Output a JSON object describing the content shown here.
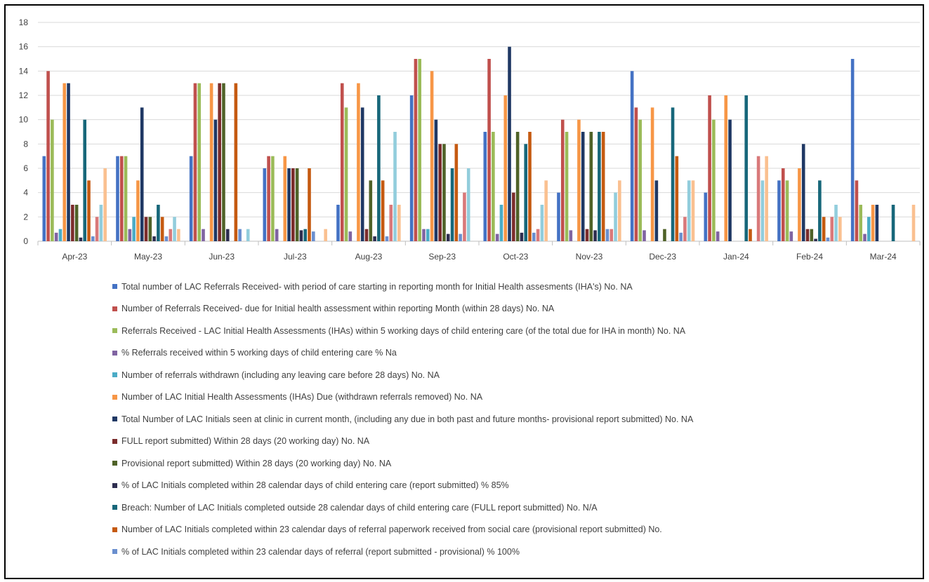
{
  "chart_data": {
    "type": "bar",
    "title": "",
    "xlabel": "",
    "ylabel": "",
    "ylim": [
      0,
      18
    ],
    "yticks": [
      0,
      2,
      4,
      6,
      8,
      10,
      12,
      14,
      16,
      18
    ],
    "grid": true,
    "legend_position": "bottom",
    "categories": [
      "Apr-23",
      "May-23",
      "Jun-23",
      "Jul-23",
      "Aug-23",
      "Sep-23",
      "Oct-23",
      "Nov-23",
      "Dec-23",
      "Jan-24",
      "Feb-24",
      "Mar-24"
    ],
    "series": [
      {
        "name": "Total number of LAC Referrals Received- with period of care starting in reporting month for Initial Health assesments (IHA's)  No. NA",
        "color": "#4472C4",
        "values": [
          7,
          7,
          7,
          6,
          3,
          12,
          9,
          4,
          14,
          4,
          5,
          15
        ]
      },
      {
        "name": "Number of Referrals Received- due for Initial health assessment within reporting Month (within 28 days)  No. NA",
        "color": "#C0504D",
        "values": [
          14,
          7,
          13,
          7,
          13,
          15,
          15,
          10,
          11,
          12,
          6,
          5
        ]
      },
      {
        "name": "Referrals Received - LAC Initial Health Assessments (IHAs) within 5 working days of child entering care (of the total due for IHA in month) No. NA",
        "color": "#9BBB59",
        "values": [
          10,
          7,
          13,
          7,
          11,
          15,
          9,
          9,
          10,
          10,
          5,
          3
        ]
      },
      {
        "name": "% Referrals received within 5 working days of child entering care % Na",
        "color": "#8064A2",
        "values": [
          0.7,
          1,
          1,
          1,
          0.8,
          1,
          0.6,
          0.9,
          0.9,
          0.8,
          0.8,
          0.6
        ]
      },
      {
        "name": "Number of referrals withdrawn (including any leaving care before 28 days) No. NA",
        "color": "#4BACC6",
        "values": [
          1,
          2,
          0,
          0,
          0,
          1,
          3,
          0,
          0,
          0,
          0,
          2
        ]
      },
      {
        "name": "Number of LAC Initial Health Assessments (IHAs) Due (withdrawn referrals removed) No. NA",
        "color": "#F79646",
        "values": [
          13,
          5,
          13,
          7,
          13,
          14,
          12,
          10,
          11,
          12,
          6,
          3
        ]
      },
      {
        "name": "Total Number of LAC Initials seen at clinic in current month, (including any due in both past and future months- provisional report submitted)  No. NA",
        "color": "#1F3864",
        "values": [
          13,
          11,
          10,
          6,
          11,
          10,
          16,
          9,
          5,
          10,
          8,
          3
        ]
      },
      {
        "name": "FULL report submitted) Within 28 days (20 working day) No. NA",
        "color": "#7B2C2C",
        "values": [
          3,
          2,
          13,
          6,
          1,
          8,
          4,
          1,
          0,
          0,
          1,
          0
        ]
      },
      {
        "name": "Provisional report submitted) Within 28 days (20 working day) No. NA",
        "color": "#4F6228",
        "values": [
          3,
          2,
          13,
          6,
          5,
          8,
          9,
          9,
          1,
          0,
          1,
          0
        ]
      },
      {
        "name": "% of LAC Initials completed within 28 calendar days of child entering care (report submitted) % 85%",
        "color": "#2E2E50",
        "values": [
          0.3,
          0.4,
          1,
          0.9,
          0.4,
          0.6,
          0.7,
          0.9,
          0,
          0,
          0.2,
          0
        ]
      },
      {
        "name": "Breach: Number of LAC Initials completed outside 28 calendar days of child entering care (FULL report submitted) No. N/A",
        "color": "#17677A",
        "values": [
          10,
          3,
          0,
          1,
          12,
          6,
          8,
          9,
          11,
          12,
          5,
          3
        ]
      },
      {
        "name": "Number of LAC Initials completed within 23 calendar days of referral paperwork received from social care (provisional report submitted) No.",
        "color": "#C55A11",
        "values": [
          5,
          2,
          13,
          6,
          5,
          8,
          9,
          9,
          7,
          1,
          2,
          0
        ]
      },
      {
        "name": "% of LAC Initials completed within 23 calendar days of referral (report submitted - provisional) % 100%",
        "color": "#6A8FCF",
        "values": [
          0.4,
          0.4,
          1,
          0.8,
          0.4,
          0.6,
          0.7,
          1,
          0.7,
          0,
          0.3,
          0
        ]
      },
      {
        "name": "",
        "color": "#D9797A",
        "values": [
          2,
          1,
          0,
          0,
          3,
          4,
          1,
          1,
          2,
          7,
          2,
          0
        ]
      },
      {
        "name": "",
        "color": "#92CDDC",
        "values": [
          3,
          2,
          1,
          0,
          9,
          6,
          3,
          4,
          5,
          5,
          3,
          0
        ]
      },
      {
        "name": "",
        "color": "#FAC090",
        "values": [
          6,
          1,
          0,
          1,
          3,
          0,
          5,
          5,
          5,
          7,
          2,
          3
        ]
      }
    ]
  }
}
